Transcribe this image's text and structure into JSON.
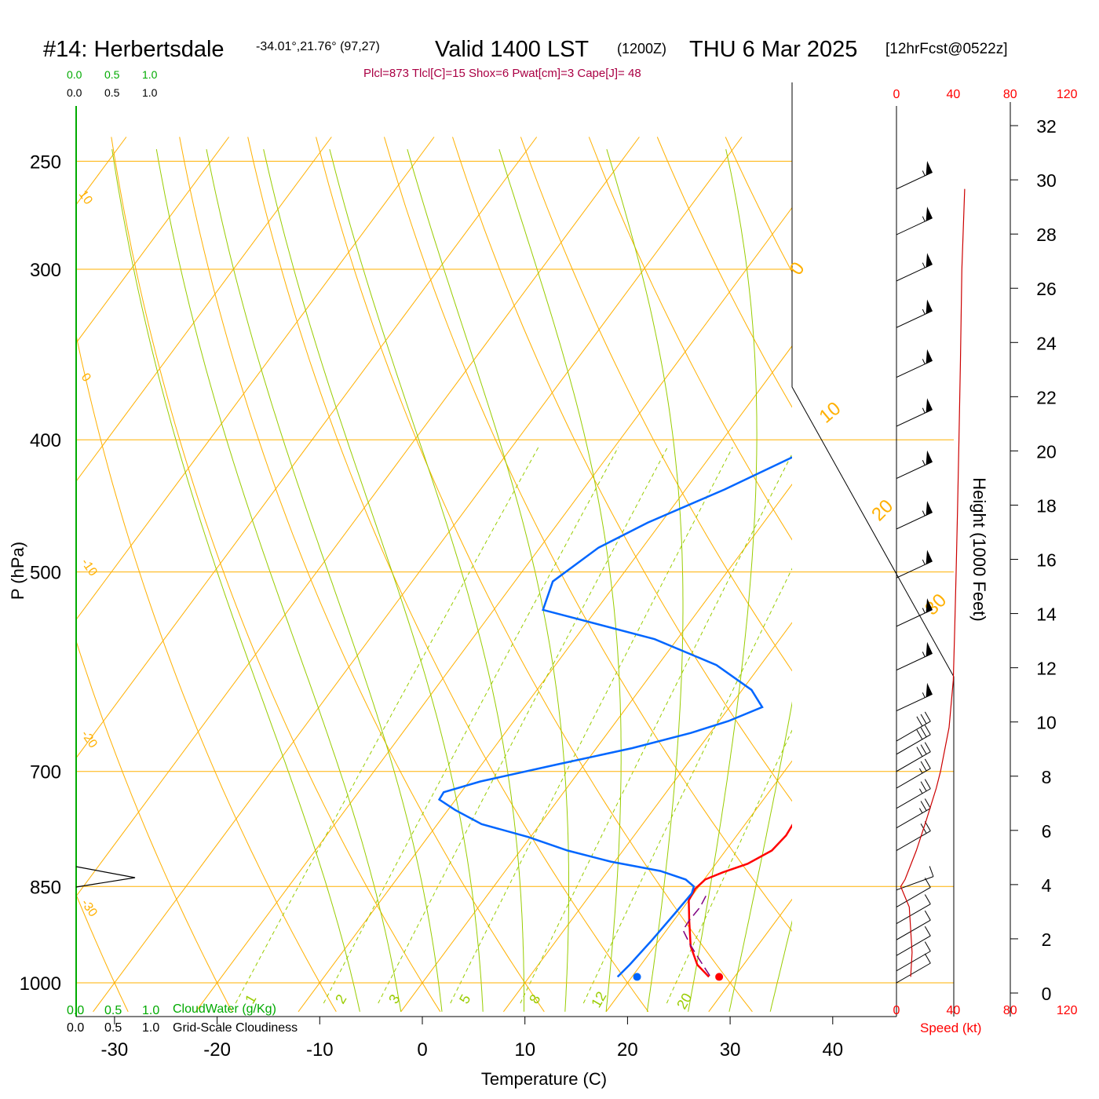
{
  "header": {
    "station": "#14: Herbertsdale",
    "coords": "-34.01°,21.76° (97,27)",
    "valid": "Valid 1400 LST",
    "utc": "(1200Z)",
    "date": "THU 6 Mar 2025",
    "forecast": "[12hrFcst@0522z]",
    "indices": "Plcl=873 Tlcl[C]=15 Shox=6 Pwat[cm]=3 Cape[J]= 48"
  },
  "scales": {
    "cloudwater_ticks": [
      "0.0",
      "0.5",
      "1.0"
    ],
    "cloudiness_ticks": [
      "0.0",
      "0.5",
      "1.0"
    ],
    "cloudwater_label": "CloudWater (g/Kg)",
    "cloudiness_label": "Grid-Scale Cloudiness",
    "speed_ticks": [
      "0",
      "40",
      "80",
      "120"
    ],
    "speed_label": "Speed (kt)"
  },
  "colors": {
    "temperature": "#ff0000",
    "dewpoint": "#0066ff",
    "parcel": "#800080",
    "isobar": "#ffb000",
    "dry_adiabat": "#ffb000",
    "moist_adiabat": "#99cc00",
    "mixing_ratio": "#99cc00",
    "green_text": "#00aa00",
    "index_text": "#aa0044"
  },
  "chart_data": {
    "type": "line",
    "xlabel": "Temperature (C)",
    "ylabel": "P (hPa)",
    "y2label": "Height (1000 Feet)",
    "xlim": [
      -34,
      36
    ],
    "ylim": [
      1035,
      250
    ],
    "x_ticks": [
      "-30",
      "-20",
      "-10",
      "0",
      "10",
      "20",
      "30",
      "40"
    ],
    "p_ticks": [
      "250",
      "300",
      "400",
      "500",
      "700",
      "850",
      "1000"
    ],
    "height_ticks": [
      "0",
      "2",
      "4",
      "6",
      "8",
      "10",
      "12",
      "14",
      "16",
      "18",
      "20",
      "22",
      "24",
      "26",
      "28",
      "30",
      "32"
    ],
    "dry_adiabat_labels": [
      "0",
      "10",
      "20",
      "30"
    ],
    "isotherm_labels": [
      "10",
      "0",
      "-10",
      "-20",
      "-30"
    ],
    "mixing_ratio_labels": [
      "1",
      "2",
      "3",
      "5",
      "8",
      "12",
      "20"
    ],
    "series": [
      {
        "key": "temperature",
        "points": [
          [
            27.5,
            990
          ],
          [
            25.5,
            970
          ],
          [
            23.5,
            940
          ],
          [
            21.5,
            900
          ],
          [
            20,
            870
          ],
          [
            19.8,
            853
          ],
          [
            20.1,
            840
          ],
          [
            21.3,
            830
          ],
          [
            23.1,
            818
          ],
          [
            24.5,
            800
          ],
          [
            24.8,
            780
          ],
          [
            24.6,
            760
          ],
          [
            24.0,
            730
          ],
          [
            23.5,
            705
          ],
          [
            22.8,
            680
          ],
          [
            21.9,
            655
          ],
          [
            20.6,
            630
          ],
          [
            19.7,
            605
          ],
          [
            19.9,
            590
          ],
          [
            20.1,
            560
          ],
          [
            20.3,
            540
          ],
          [
            20.1,
            520
          ],
          [
            20.0,
            500
          ],
          [
            19.6,
            478
          ],
          [
            19.0,
            455
          ],
          [
            17.7,
            427
          ],
          [
            15.9,
            400
          ],
          [
            14.3,
            374
          ],
          [
            12.7,
            350
          ],
          [
            11.5,
            324
          ],
          [
            10.2,
            300
          ],
          [
            8.5,
            278
          ],
          [
            6.8,
            256
          ]
        ]
      },
      {
        "key": "dewpoint",
        "points": [
          [
            18.6,
            990
          ],
          [
            18.9,
            970
          ],
          [
            19.3,
            930
          ],
          [
            19.6,
            890
          ],
          [
            19.8,
            860
          ],
          [
            19.5,
            850
          ],
          [
            18.2,
            840
          ],
          [
            15.1,
            828
          ],
          [
            9.6,
            815
          ],
          [
            4.6,
            800
          ],
          [
            -0.2,
            782
          ],
          [
            -5.7,
            765
          ],
          [
            -9.3,
            747
          ],
          [
            -11.6,
            734
          ],
          [
            -11.7,
            725
          ],
          [
            -8.9,
            712
          ],
          [
            -2.7,
            692
          ],
          [
            3.5,
            673
          ],
          [
            8.1,
            656
          ],
          [
            10.9,
            643
          ],
          [
            13.2,
            628
          ],
          [
            10.9,
            610
          ],
          [
            5.7,
            585
          ],
          [
            -2.2,
            560
          ],
          [
            -15.2,
            533
          ],
          [
            -16.3,
            508
          ],
          [
            -14.3,
            480
          ],
          [
            -11.3,
            460
          ],
          [
            -6.2,
            435
          ],
          [
            -0.4,
            404
          ],
          [
            2.9,
            371
          ],
          [
            5.4,
            346
          ],
          [
            8.0,
            322
          ],
          [
            10.0,
            300
          ],
          [
            10.2,
            280
          ],
          [
            10.0,
            262
          ]
        ]
      },
      {
        "key": "parcel",
        "points": [
          [
            27.5,
            988
          ],
          [
            25.2,
            960
          ],
          [
            23.3,
            937
          ],
          [
            21.6,
            915
          ],
          [
            21.5,
            900
          ],
          [
            21.6,
            880
          ],
          [
            21.3,
            860
          ]
        ]
      }
    ],
    "surface_points": [
      {
        "key": "temperature",
        "t": 28.5,
        "p": 990
      },
      {
        "key": "dewpoint",
        "t": 20.5,
        "p": 990
      }
    ],
    "wind_barbs": {
      "note": "speed in knots, direction in degrees",
      "levels": [
        {
          "p": 262,
          "speed": 55,
          "dir": 295
        },
        {
          "p": 283,
          "speed": 55,
          "dir": 295
        },
        {
          "p": 306,
          "speed": 55,
          "dir": 295
        },
        {
          "p": 331,
          "speed": 55,
          "dir": 295
        },
        {
          "p": 360,
          "speed": 55,
          "dir": 295
        },
        {
          "p": 391,
          "speed": 55,
          "dir": 295
        },
        {
          "p": 427,
          "speed": 55,
          "dir": 295
        },
        {
          "p": 465,
          "speed": 55,
          "dir": 295
        },
        {
          "p": 505,
          "speed": 55,
          "dir": 295
        },
        {
          "p": 548,
          "speed": 55,
          "dir": 295
        },
        {
          "p": 590,
          "speed": 55,
          "dir": 295
        },
        {
          "p": 632,
          "speed": 55,
          "dir": 295
        },
        {
          "p": 665,
          "speed": 30,
          "dir": 300
        },
        {
          "p": 680,
          "speed": 30,
          "dir": 300
        },
        {
          "p": 700,
          "speed": 30,
          "dir": 300
        },
        {
          "p": 720,
          "speed": 25,
          "dir": 300
        },
        {
          "p": 745,
          "speed": 25,
          "dir": 300
        },
        {
          "p": 770,
          "speed": 25,
          "dir": 300
        },
        {
          "p": 800,
          "speed": 20,
          "dir": 300
        },
        {
          "p": 855,
          "speed": 10,
          "dir": 290
        },
        {
          "p": 880,
          "speed": 10,
          "dir": 300
        },
        {
          "p": 905,
          "speed": 10,
          "dir": 300
        },
        {
          "p": 930,
          "speed": 10,
          "dir": 300
        },
        {
          "p": 955,
          "speed": 10,
          "dir": 300
        },
        {
          "p": 980,
          "speed": 10,
          "dir": 300
        },
        {
          "p": 1000,
          "speed": 10,
          "dir": 300
        }
      ]
    },
    "speed_profile": [
      [
        10,
        990
      ],
      [
        11,
        950
      ],
      [
        9,
        880
      ],
      [
        3,
        850
      ],
      [
        6,
        840
      ],
      [
        14,
        800
      ],
      [
        21,
        760
      ],
      [
        28,
        720
      ],
      [
        31,
        700
      ],
      [
        37,
        650
      ],
      [
        40,
        600
      ],
      [
        41,
        550
      ],
      [
        42,
        500
      ],
      [
        43,
        450
      ],
      [
        44,
        400
      ],
      [
        45,
        350
      ],
      [
        46,
        300
      ],
      [
        48,
        262
      ]
    ]
  }
}
